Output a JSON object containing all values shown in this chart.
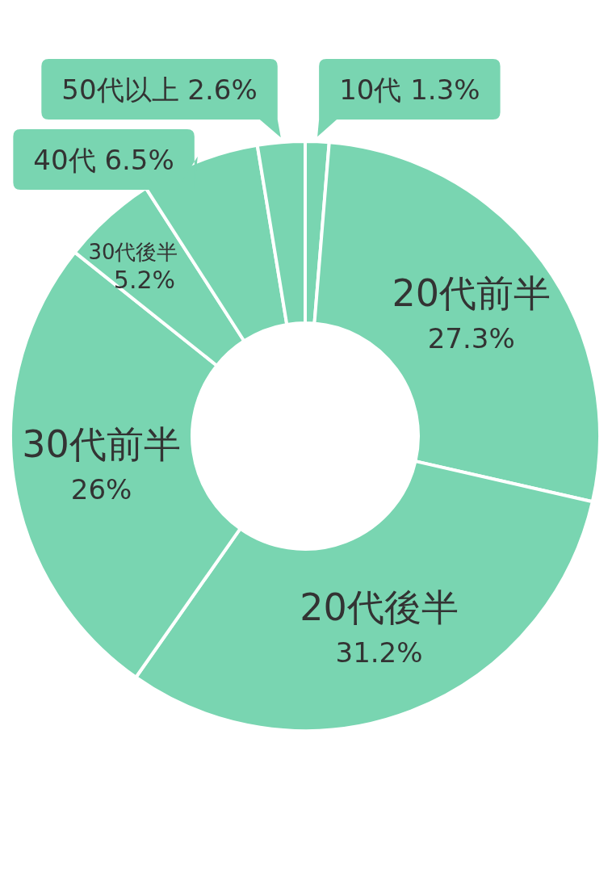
{
  "chart_data": {
    "type": "donut",
    "categories": [
      "10代",
      "20代前半",
      "20代後半",
      "30代前半",
      "30代後半",
      "40代",
      "50代以上"
    ],
    "values": [
      1.3,
      27.3,
      31.2,
      26,
      5.2,
      6.5,
      2.6
    ],
    "value_labels": [
      "1.3%",
      "27.3%",
      "31.2%",
      "26%",
      "5.2%",
      "6.5%",
      "2.6%"
    ],
    "colors": [
      "#79d5b1",
      "#79d5b1",
      "#79d5b1",
      "#79d5b1",
      "#79d5b1",
      "#79d5b1",
      "#79d5b1"
    ]
  }
}
